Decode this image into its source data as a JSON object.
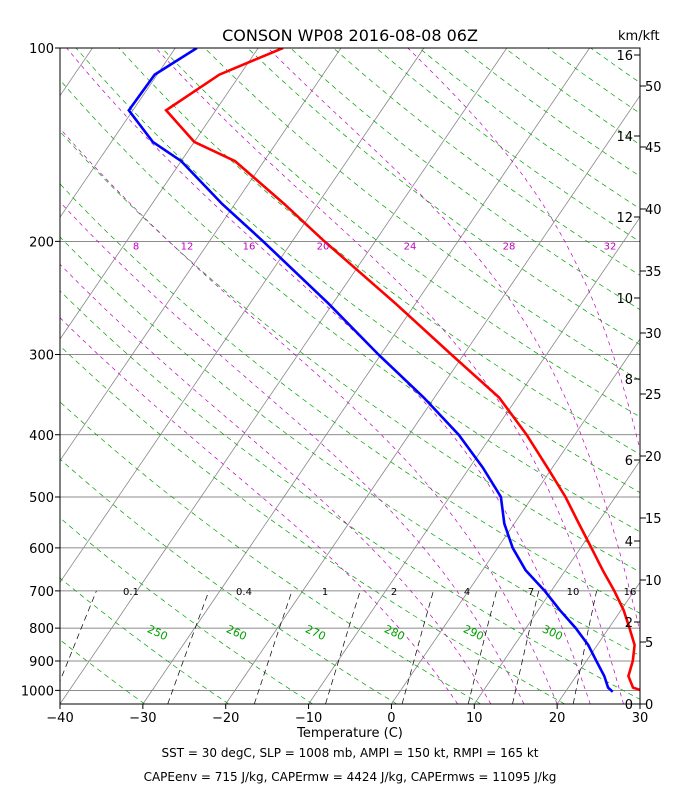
{
  "chart_data": {
    "type": "line",
    "title": "CONSON WP08 2016-08-08 06Z",
    "xlabel": "Temperature (C)",
    "right_axis_label": "km/kft",
    "xlim": [
      -40,
      30
    ],
    "ylim": [
      1050,
      100
    ],
    "y_scale": "log",
    "x_ticks": [
      "−40",
      "−30",
      "−20",
      "−10",
      "0",
      "10",
      "20",
      "30"
    ],
    "pressure_ticks": [
      "100",
      "200",
      "300",
      "400",
      "500",
      "600",
      "700",
      "800",
      "900",
      "1000"
    ],
    "km_ticks": [
      "0",
      "2",
      "4",
      "6",
      "8",
      "10",
      "12",
      "14",
      "16"
    ],
    "kft_ticks": [
      "0",
      "5",
      "10",
      "15",
      "20",
      "25",
      "30",
      "35",
      "40",
      "45",
      "50"
    ],
    "mixing_ratio_labels": [
      "0.1",
      "0.4",
      "1",
      "2",
      "4",
      "7",
      "10",
      "16"
    ],
    "mixing_ratio_values": [
      0.1,
      0.4,
      1,
      2,
      4,
      7,
      10,
      16
    ],
    "moist_adiabat_labels": [
      "8",
      "12",
      "16",
      "20",
      "24",
      "28",
      "32"
    ],
    "moist_adiabat_values": [
      8,
      12,
      16,
      20,
      24,
      28,
      32
    ],
    "dry_adiabat_labels": [
      "250",
      "260",
      "270",
      "280",
      "290",
      "300"
    ],
    "dry_adiabat_values": [
      250,
      260,
      270,
      280,
      290,
      300
    ],
    "series": [
      {
        "color": "#ff0000",
        "role": "temperature",
        "pressure": [
          1005,
          990,
          950,
          900,
          850,
          800,
          750,
          700,
          650,
          600,
          550,
          500,
          450,
          400,
          350,
          300,
          250,
          200,
          175,
          150,
          140,
          125,
          110,
          100
        ],
        "values": [
          29.6,
          27.8,
          26.3,
          25.6,
          24.5,
          22.5,
          20.3,
          17.6,
          14.5,
          11.3,
          7.8,
          4.0,
          -0.6,
          -5.8,
          -12.2,
          -21.5,
          -32.4,
          -46.1,
          -54.0,
          -63.5,
          -70.0,
          -76.0,
          -72.5,
          -67.0
        ]
      },
      {
        "color": "#0000ff",
        "role": "dewpoint",
        "pressure": [
          1005,
          990,
          950,
          900,
          850,
          800,
          750,
          700,
          650,
          600,
          550,
          500,
          450,
          400,
          350,
          300,
          250,
          200,
          175,
          150,
          140,
          125,
          110,
          100
        ],
        "values": [
          25.7,
          24.8,
          23.4,
          21.2,
          18.9,
          16.0,
          12.6,
          9.2,
          5.2,
          1.8,
          -1.2,
          -3.8,
          -8.4,
          -14.0,
          -21.3,
          -30.3,
          -40.5,
          -53.5,
          -61.5,
          -70.0,
          -75.0,
          -80.5,
          -80.3,
          -77.4
        ]
      }
    ]
  },
  "footer": {
    "line1": "SST = 30 degC, SLP = 1008 mb, AMPI = 150 kt, RMPI = 165 kt",
    "line2": "CAPEenv = 715 J/kg, CAPErmw = 4424 J/kg, CAPErmws = 11095 J/kg"
  },
  "colors": {
    "temperature": "#ff0000",
    "dewpoint": "#0000ff",
    "dry_adiabat": "#00a000",
    "moist_adiabat": "#c000c0",
    "isotherm": "#888888",
    "mixing_ratio": "#000000"
  }
}
